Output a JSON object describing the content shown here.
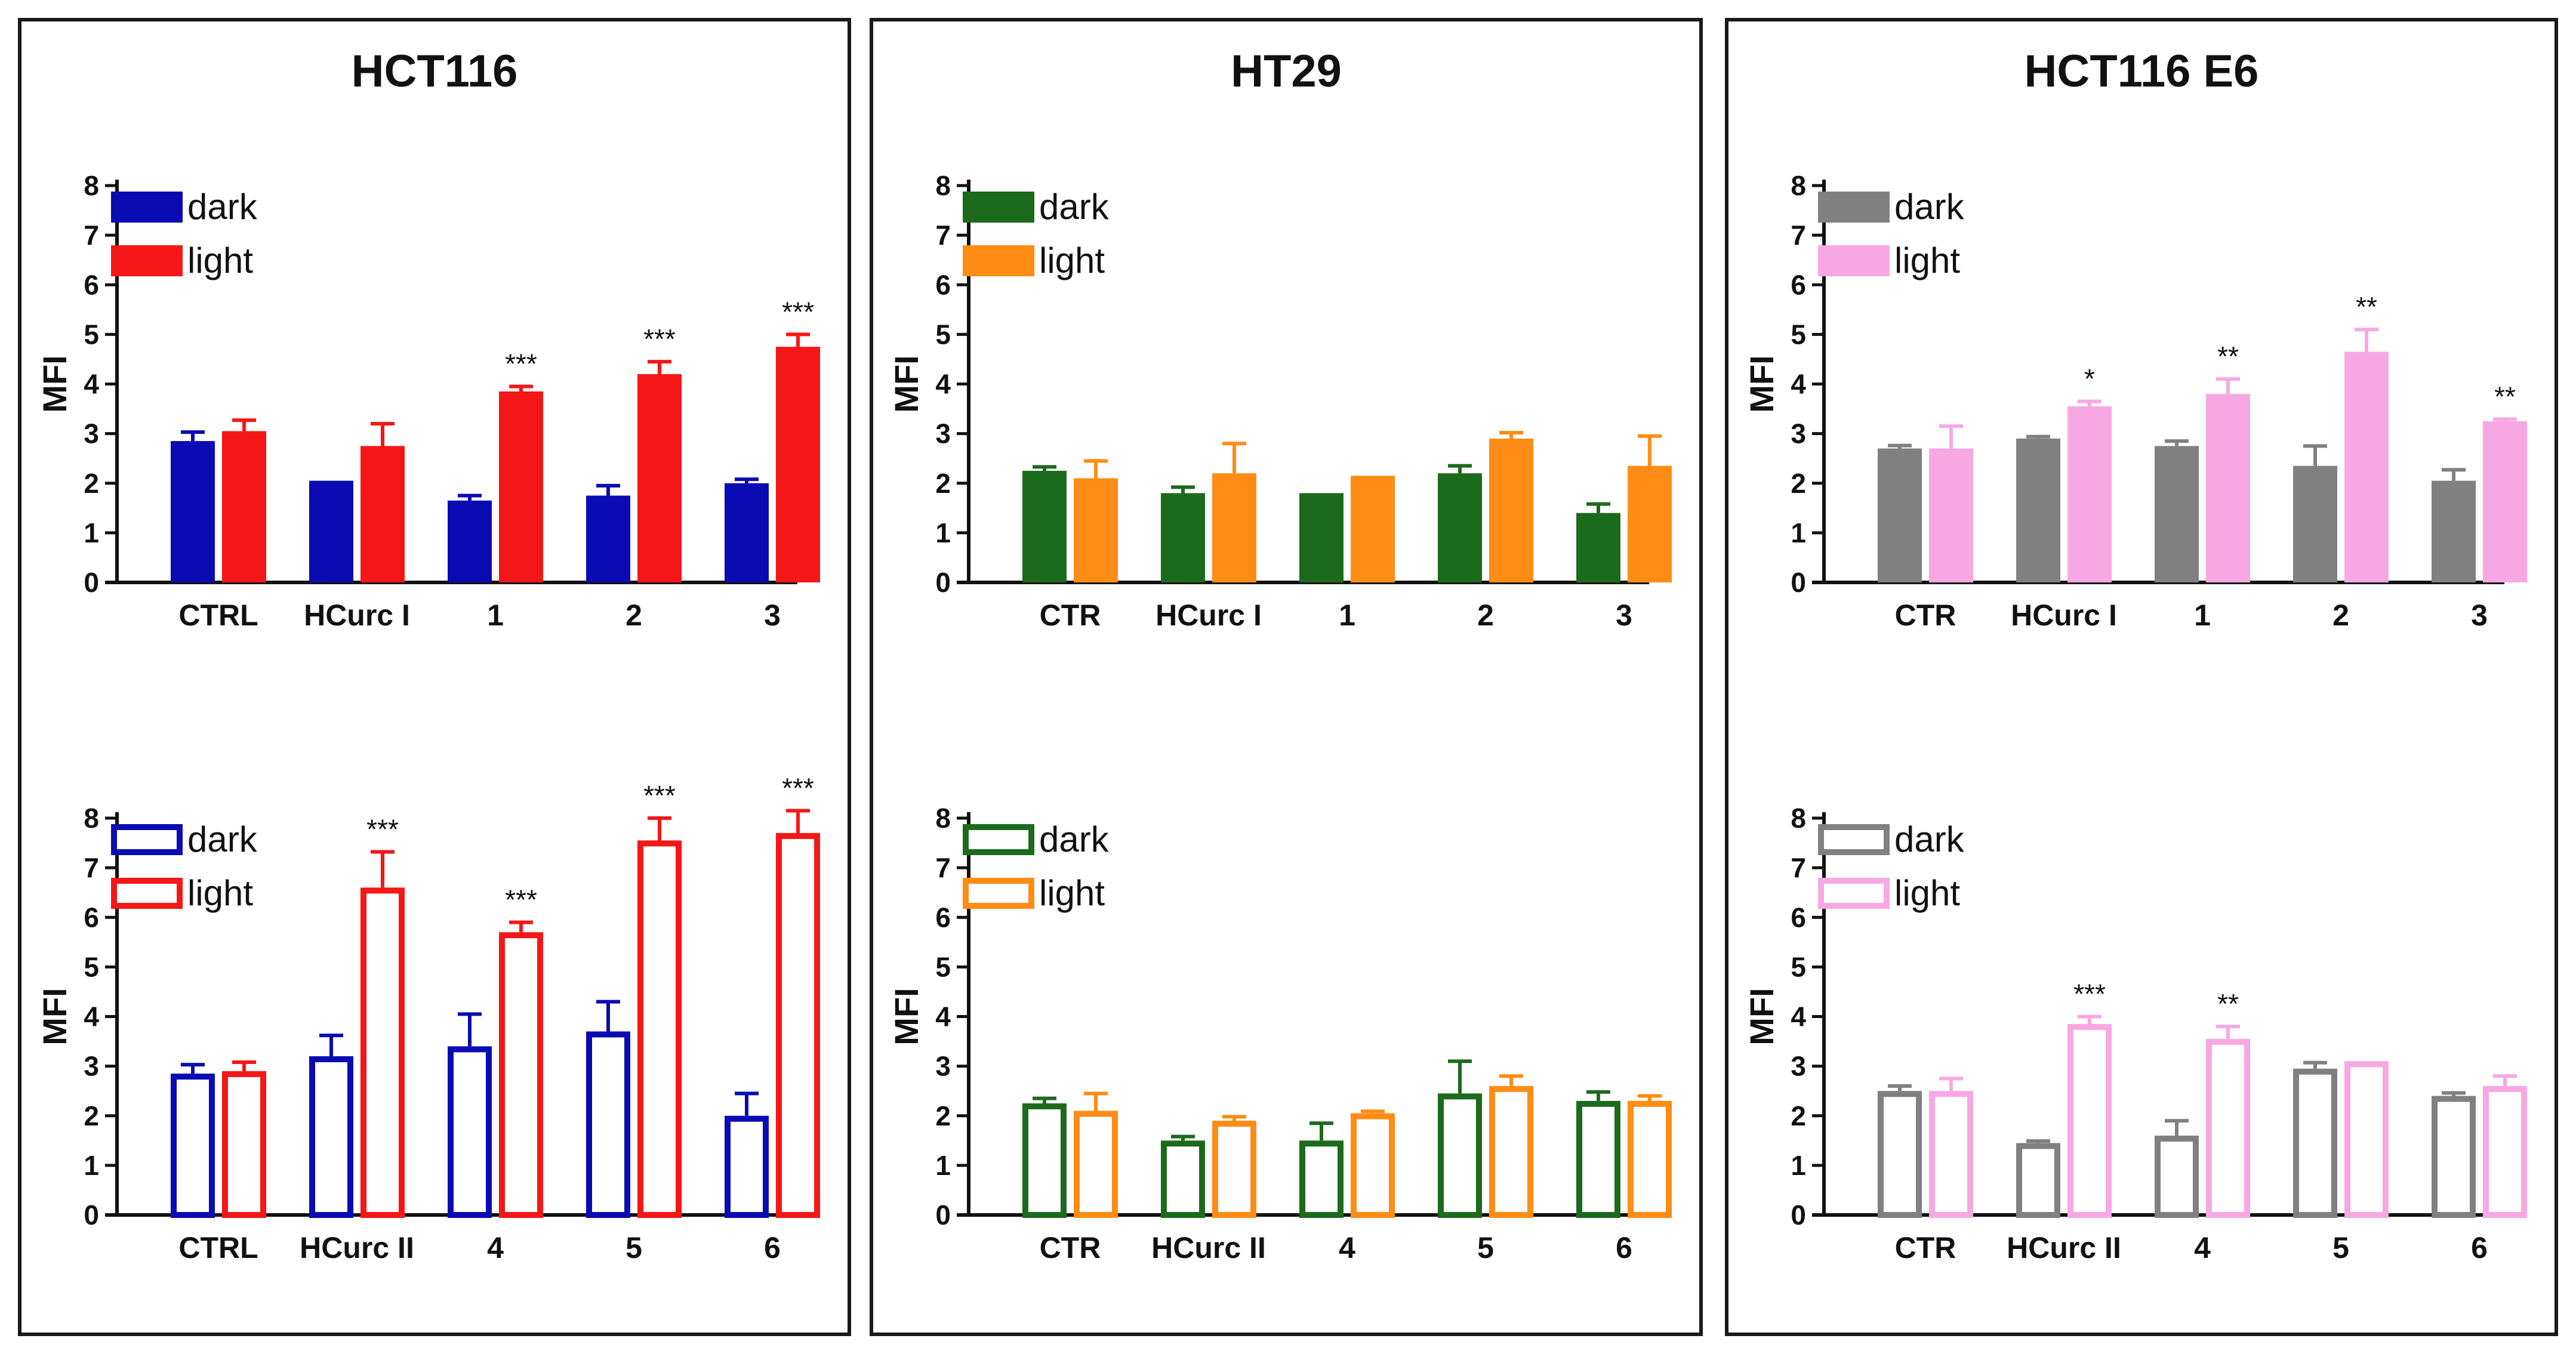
{
  "colors": {
    "hct116_dark": "#0b0bb4",
    "hct116_light": "#f51717",
    "ht29_dark": "#1c6a1c",
    "ht29_light": "#ff8c14",
    "e6_dark": "#808080",
    "e6_light": "#f7a8e3",
    "axis": "#111111"
  },
  "panels": [
    {
      "title": "HCT116"
    },
    {
      "title": "HT29"
    },
    {
      "title": "HCT116 E6"
    }
  ],
  "chart_data": [
    {
      "id": "hct116-top",
      "panel": 0,
      "row": 0,
      "type": "bar",
      "style": "filled",
      "title": "",
      "ylabel": "MFI",
      "xlabel": "",
      "ylim": [
        0,
        8
      ],
      "yticks": [
        "0",
        "1",
        "2",
        "3",
        "4",
        "5",
        "6",
        "7",
        "8"
      ],
      "legend_position": "top-left",
      "categories": [
        "CTRL",
        "HCurc I",
        "1",
        "2",
        "3"
      ],
      "series": [
        {
          "name": "dark",
          "color_key": "hct116_dark",
          "values": [
            2.85,
            2.05,
            1.65,
            1.75,
            2.0
          ],
          "errors": [
            0.18,
            0.0,
            0.1,
            0.2,
            0.08
          ]
        },
        {
          "name": "light",
          "color_key": "hct116_light",
          "values": [
            3.05,
            2.75,
            3.85,
            4.2,
            4.75
          ],
          "errors": [
            0.22,
            0.45,
            0.1,
            0.25,
            0.25
          ]
        }
      ],
      "significance": [
        "",
        "",
        "***",
        "***",
        "***"
      ]
    },
    {
      "id": "hct116-bottom",
      "panel": 0,
      "row": 1,
      "type": "bar",
      "style": "outline",
      "title": "",
      "ylabel": "MFI",
      "xlabel": "",
      "ylim": [
        0,
        8
      ],
      "yticks": [
        "0",
        "1",
        "2",
        "3",
        "4",
        "5",
        "6",
        "7",
        "8"
      ],
      "legend_position": "top-left",
      "categories": [
        "CTRL",
        "HCurc II",
        "4",
        "5",
        "6"
      ],
      "series": [
        {
          "name": "dark",
          "color_key": "hct116_dark",
          "values": [
            2.85,
            3.2,
            3.4,
            3.7,
            2.0
          ],
          "errors": [
            0.18,
            0.42,
            0.65,
            0.6,
            0.45
          ]
        },
        {
          "name": "light",
          "color_key": "hct116_light",
          "values": [
            2.9,
            6.6,
            5.7,
            7.55,
            7.7
          ],
          "errors": [
            0.18,
            0.72,
            0.2,
            0.45,
            0.45
          ]
        }
      ],
      "significance": [
        "",
        "***",
        "***",
        "***",
        "***"
      ]
    },
    {
      "id": "ht29-top",
      "panel": 1,
      "row": 0,
      "type": "bar",
      "style": "filled",
      "title": "",
      "ylabel": "MFI",
      "xlabel": "",
      "ylim": [
        0,
        8
      ],
      "yticks": [
        "0",
        "1",
        "2",
        "3",
        "4",
        "5",
        "6",
        "7",
        "8"
      ],
      "legend_position": "top-left",
      "categories": [
        "CTR",
        "HCurc I",
        "1",
        "2",
        "3"
      ],
      "series": [
        {
          "name": "dark",
          "color_key": "ht29_dark",
          "values": [
            2.25,
            1.8,
            1.8,
            2.2,
            1.4
          ],
          "errors": [
            0.08,
            0.12,
            0.0,
            0.15,
            0.18
          ]
        },
        {
          "name": "light",
          "color_key": "ht29_light",
          "values": [
            2.1,
            2.2,
            2.15,
            2.9,
            2.35
          ],
          "errors": [
            0.35,
            0.6,
            0.0,
            0.12,
            0.6
          ]
        }
      ],
      "significance": [
        "",
        "",
        "",
        "",
        ""
      ]
    },
    {
      "id": "ht29-bottom",
      "panel": 1,
      "row": 1,
      "type": "bar",
      "style": "outline",
      "title": "",
      "ylabel": "MFI",
      "xlabel": "",
      "ylim": [
        0,
        8
      ],
      "yticks": [
        "0",
        "1",
        "2",
        "3",
        "4",
        "5",
        "6",
        "7",
        "8"
      ],
      "legend_position": "top-left",
      "categories": [
        "CTR",
        "HCurc II",
        "4",
        "5",
        "6"
      ],
      "series": [
        {
          "name": "dark",
          "color_key": "ht29_dark",
          "values": [
            2.25,
            1.5,
            1.5,
            2.45,
            2.3
          ],
          "errors": [
            0.1,
            0.08,
            0.35,
            0.65,
            0.18
          ]
        },
        {
          "name": "light",
          "color_key": "ht29_light",
          "values": [
            2.1,
            1.9,
            2.05,
            2.6,
            2.3
          ],
          "errors": [
            0.35,
            0.08,
            0.04,
            0.2,
            0.1
          ]
        }
      ],
      "significance": [
        "",
        "",
        "",
        "",
        ""
      ]
    },
    {
      "id": "e6-top",
      "panel": 2,
      "row": 0,
      "type": "bar",
      "style": "filled",
      "title": "",
      "ylabel": "MFI",
      "xlabel": "",
      "ylim": [
        0,
        8
      ],
      "yticks": [
        "0",
        "1",
        "2",
        "3",
        "4",
        "5",
        "6",
        "7",
        "8"
      ],
      "legend_position": "top-left",
      "categories": [
        "CTR",
        "HCurc I",
        "1",
        "2",
        "3"
      ],
      "series": [
        {
          "name": "dark",
          "color_key": "e6_dark",
          "values": [
            2.7,
            2.9,
            2.75,
            2.35,
            2.05
          ],
          "errors": [
            0.06,
            0.04,
            0.1,
            0.4,
            0.22
          ]
        },
        {
          "name": "light",
          "color_key": "e6_light",
          "values": [
            2.7,
            3.55,
            3.8,
            4.65,
            3.25
          ],
          "errors": [
            0.45,
            0.1,
            0.3,
            0.45,
            0.04
          ]
        }
      ],
      "significance": [
        "",
        "*",
        "**",
        "**",
        "**"
      ]
    },
    {
      "id": "e6-bottom",
      "panel": 2,
      "row": 1,
      "type": "bar",
      "style": "outline",
      "title": "",
      "ylabel": "MFI",
      "xlabel": "",
      "ylim": [
        0,
        8
      ],
      "yticks": [
        "0",
        "1",
        "2",
        "3",
        "4",
        "5",
        "6",
        "7",
        "8"
      ],
      "legend_position": "top-left",
      "categories": [
        "CTR",
        "HCurc II",
        "4",
        "5",
        "6"
      ],
      "series": [
        {
          "name": "dark",
          "color_key": "e6_dark",
          "values": [
            2.5,
            1.45,
            1.6,
            2.95,
            2.4
          ],
          "errors": [
            0.1,
            0.04,
            0.3,
            0.12,
            0.06
          ]
        },
        {
          "name": "light",
          "color_key": "e6_light",
          "values": [
            2.5,
            3.85,
            3.55,
            3.1,
            2.6
          ],
          "errors": [
            0.25,
            0.15,
            0.25,
            0.0,
            0.2
          ]
        }
      ],
      "significance": [
        "",
        "***",
        "**",
        "",
        ""
      ]
    }
  ]
}
